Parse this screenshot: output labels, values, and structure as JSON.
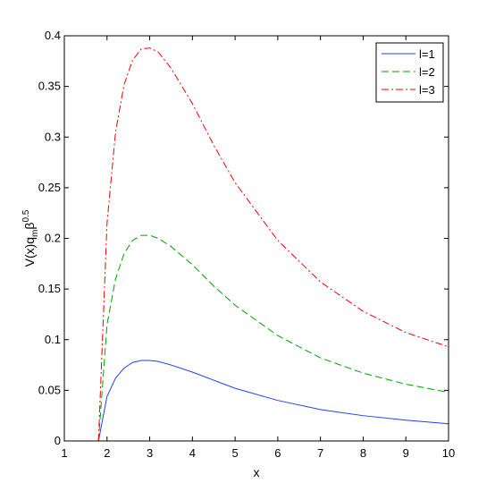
{
  "chart_data": {
    "type": "line",
    "title": "",
    "xlabel": "x",
    "ylabel": {
      "main": "V(x)q",
      "subscript": "m",
      "after": "β",
      "superscript": "0.5"
    },
    "xlim": [
      1,
      10
    ],
    "ylim": [
      0,
      0.4
    ],
    "xticks": [
      "1",
      "2",
      "3",
      "4",
      "5",
      "6",
      "7",
      "8",
      "9",
      "10"
    ],
    "yticks": [
      "0",
      "0.05",
      "0.1",
      "0.15",
      "0.2",
      "0.25",
      "0.3",
      "0.35",
      "0.4"
    ],
    "grid": false,
    "legend_position": "top-right",
    "series": [
      {
        "name": "l=1",
        "color": "#1f3fff",
        "style": "solid",
        "x": [
          1,
          1.78,
          1.8,
          2.0,
          2.2,
          2.4,
          2.6,
          2.8,
          3.0,
          3.2,
          3.5,
          4.0,
          4.5,
          5.0,
          6.0,
          7.0,
          8.0,
          9.0,
          10.0
        ],
        "y": [
          0,
          0,
          0.0,
          0.044,
          0.062,
          0.072,
          0.0775,
          0.0795,
          0.0795,
          0.0785,
          0.075,
          0.068,
          0.06,
          0.052,
          0.04,
          0.031,
          0.025,
          0.0205,
          0.017
        ]
      },
      {
        "name": "l=2",
        "color": "#00a000",
        "style": "dashed",
        "x": [
          1.8,
          2.0,
          2.2,
          2.4,
          2.6,
          2.8,
          3.0,
          3.2,
          3.5,
          4.0,
          4.5,
          5.0,
          6.0,
          7.0,
          8.0,
          9.0,
          10.0
        ],
        "y": [
          0.0,
          0.115,
          0.16,
          0.185,
          0.198,
          0.203,
          0.203,
          0.2,
          0.192,
          0.174,
          0.153,
          0.134,
          0.104,
          0.082,
          0.067,
          0.056,
          0.048
        ]
      },
      {
        "name": "l=3",
        "color": "#ff0000",
        "style": "dashdot",
        "x": [
          1.8,
          2.0,
          2.2,
          2.4,
          2.6,
          2.8,
          3.0,
          3.2,
          3.5,
          4.0,
          4.5,
          5.0,
          6.0,
          7.0,
          8.0,
          9.0,
          10.0
        ],
        "y": [
          0.0,
          0.215,
          0.305,
          0.352,
          0.376,
          0.387,
          0.388,
          0.384,
          0.368,
          0.333,
          0.292,
          0.255,
          0.198,
          0.157,
          0.128,
          0.107,
          0.093
        ]
      }
    ]
  }
}
